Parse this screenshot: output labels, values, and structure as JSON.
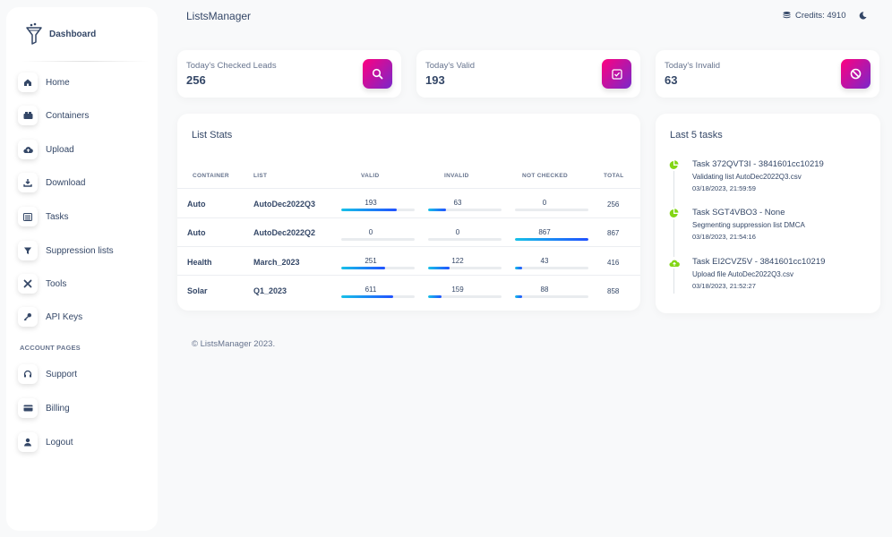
{
  "sidebar": {
    "brand": "Dashboard",
    "items": [
      {
        "label": "Home",
        "icon": "home-icon"
      },
      {
        "label": "Containers",
        "icon": "containers-icon"
      },
      {
        "label": "Upload",
        "icon": "cloud-upload-icon"
      },
      {
        "label": "Download",
        "icon": "download-icon"
      },
      {
        "label": "Tasks",
        "icon": "tasks-icon"
      },
      {
        "label": "Suppression lists",
        "icon": "filter-icon"
      },
      {
        "label": "Tools",
        "icon": "tools-icon"
      },
      {
        "label": "API Keys",
        "icon": "key-icon"
      }
    ],
    "section_label": "ACCOUNT PAGES",
    "account_items": [
      {
        "label": "Support",
        "icon": "headset-icon"
      },
      {
        "label": "Billing",
        "icon": "credit-card-icon"
      },
      {
        "label": "Logout",
        "icon": "user-icon"
      }
    ]
  },
  "topbar": {
    "title": "ListsManager",
    "credits": "Credits: 4910"
  },
  "stats": [
    {
      "label": "Today's Checked Leads",
      "value": "256",
      "icon": "search-icon"
    },
    {
      "label": "Today's Valid",
      "value": "193",
      "icon": "check-square-icon"
    },
    {
      "label": "Today's Invalid",
      "value": "63",
      "icon": "ban-icon"
    }
  ],
  "list_stats": {
    "title": "List Stats",
    "headers": {
      "container": "CONTAINER",
      "list": "LIST",
      "valid": "VALID",
      "invalid": "INVALID",
      "not_checked": "NOT CHECKED",
      "total": "TOTAL"
    },
    "rows": [
      {
        "container": "Auto",
        "list": "AutoDec2022Q3",
        "valid": "193",
        "valid_pct": 0.7539,
        "invalid": "63",
        "invalid_pct": 0.2461,
        "not_checked": "0",
        "not_checked_pct": 0,
        "total": "256"
      },
      {
        "container": "Auto",
        "list": "AutoDec2022Q2",
        "valid": "0",
        "valid_pct": 0,
        "invalid": "0",
        "invalid_pct": 0,
        "not_checked": "867",
        "not_checked_pct": 1,
        "total": "867"
      },
      {
        "container": "Health",
        "list": "March_2023",
        "valid": "251",
        "valid_pct": 0.6034,
        "invalid": "122",
        "invalid_pct": 0.2933,
        "not_checked": "43",
        "not_checked_pct": 0.1034,
        "total": "416"
      },
      {
        "container": "Solar",
        "list": "Q1_2023",
        "valid": "611",
        "valid_pct": 0.7121,
        "invalid": "159",
        "invalid_pct": 0.1853,
        "not_checked": "88",
        "not_checked_pct": 0.1026,
        "total": "858"
      }
    ]
  },
  "tasks": {
    "title": "Last 5 tasks",
    "items": [
      {
        "title": "Task 372QVT3I - 3841601cc10219",
        "desc": "Validating list AutoDec2022Q3.csv",
        "time": "03/18/2023, 21:59:59",
        "icon": "pie-chart-icon"
      },
      {
        "title": "Task SGT4VBO3 - None",
        "desc": "Segmenting suppression list DMCA",
        "time": "03/18/2023, 21:54:16",
        "icon": "pie-chart-icon"
      },
      {
        "title": "Task EI2CVZ5V - 3841601cc10219",
        "desc": "Upload file AutoDec2022Q3.csv",
        "time": "03/18/2023, 21:52:27",
        "icon": "cloud-upload-icon"
      }
    ]
  },
  "footer": "© ListsManager 2023.",
  "colors": {
    "accent_from": "#7928ca",
    "accent_to": "#ff0080",
    "progress_from": "#17c1e8",
    "progress_to": "#2152ff",
    "task_icon": "#82d616",
    "text": "#344767"
  }
}
